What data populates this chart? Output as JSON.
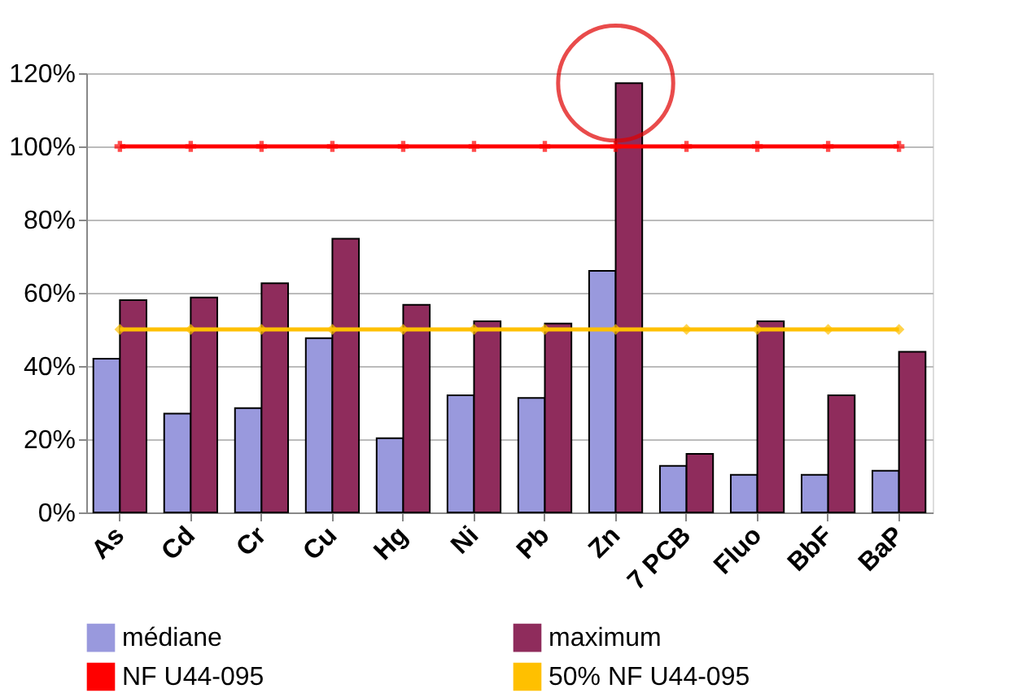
{
  "chart_data": {
    "type": "bar",
    "categories": [
      "As",
      "Cd",
      "Cr",
      "Cu",
      "Hg",
      "Ni",
      "Pb",
      "Zn",
      "7 PCB",
      "Fluo",
      "BbF",
      "BaP"
    ],
    "series": [
      {
        "name": "médiane",
        "color": "#9999dd",
        "values": [
          42,
          27,
          28.5,
          47.6,
          20.3,
          32,
          31.3,
          66,
          12.7,
          10.3,
          10.3,
          11.4
        ]
      },
      {
        "name": "maximum",
        "color": "#8f2c5c",
        "values": [
          58,
          58.7,
          62.6,
          74.8,
          56.7,
          52.2,
          51.6,
          117.3,
          16,
          52.2,
          32,
          43.9
        ]
      },
      {
        "name": "NF U44-095",
        "type": "line",
        "color": "#ff0000",
        "marker": "cross",
        "values": [
          100,
          100,
          100,
          100,
          100,
          100,
          100,
          100,
          100,
          100,
          100,
          100
        ]
      },
      {
        "name": "50% NF U44-095",
        "type": "line",
        "color": "#ffc000",
        "marker": "diamond",
        "values": [
          50,
          50,
          50,
          50,
          50,
          50,
          50,
          50,
          50,
          50,
          50,
          50
        ]
      }
    ],
    "ylim": [
      0,
      120
    ],
    "yticks": [
      {
        "value": 0,
        "label": "0%"
      },
      {
        "value": 20,
        "label": "20%"
      },
      {
        "value": 40,
        "label": "40%"
      },
      {
        "value": 60,
        "label": "60%"
      },
      {
        "value": 80,
        "label": "80%"
      },
      {
        "value": 100,
        "label": "100%"
      },
      {
        "value": 120,
        "label": "120%"
      }
    ],
    "grid": "y",
    "legend": "bottom"
  }
}
